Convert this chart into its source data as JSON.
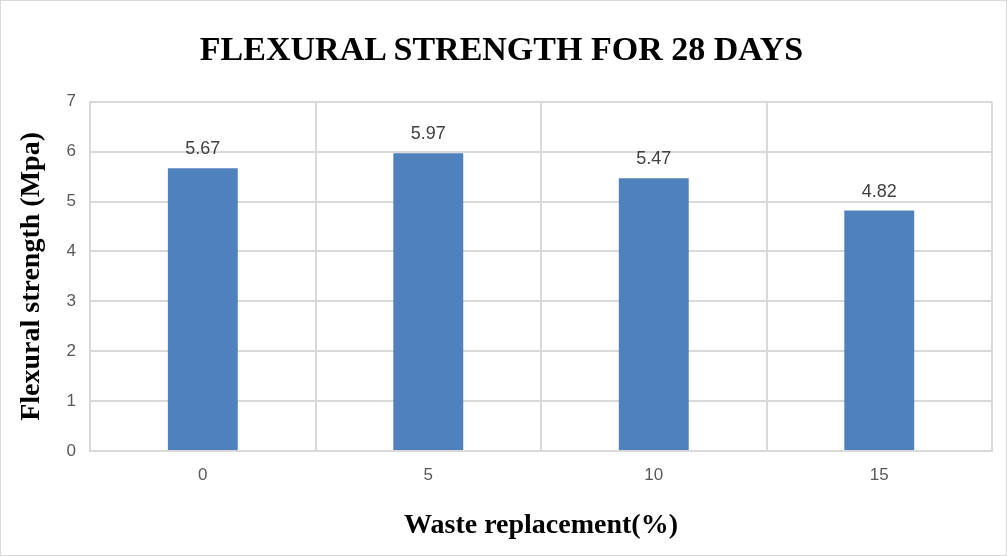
{
  "chart_data": {
    "type": "bar",
    "title": "FLEXURAL STRENGTH FOR 28 DAYS",
    "xlabel": "Waste replacement(%)",
    "ylabel": "Flexural strength (Mpa)",
    "categories": [
      "0",
      "5",
      "10",
      "15"
    ],
    "values": [
      5.67,
      5.97,
      5.47,
      4.82
    ],
    "color": "#4f81bd",
    "ylim": [
      0,
      7
    ],
    "yticks": [
      0,
      1,
      2,
      3,
      4,
      5,
      6,
      7
    ],
    "grid": true,
    "data_labels": true
  }
}
